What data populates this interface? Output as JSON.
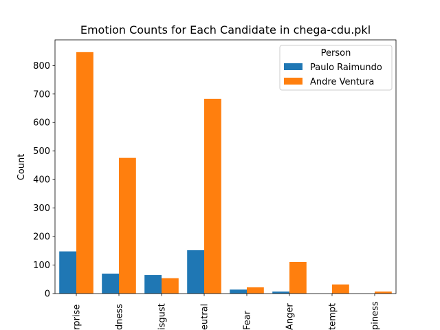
{
  "chart_data": {
    "type": "bar",
    "title": "Emotion Counts for Each Candidate in chega-cdu.pkl",
    "xlabel": "",
    "ylabel": "Count",
    "ylim": [
      0,
      890
    ],
    "yticks": [
      0,
      100,
      200,
      300,
      400,
      500,
      600,
      700,
      800
    ],
    "categories": [
      "Surprise",
      "Sadness",
      "Disgust",
      "Neutral",
      "Fear",
      "Anger",
      "Contempt",
      "Happiness"
    ],
    "category_labels_visible": [
      "rprise",
      "dness",
      "isgust",
      "eutral",
      "Fear",
      "Anger",
      "tempt",
      "piness"
    ],
    "series": [
      {
        "name": "Paulo Raimundo",
        "color": "#1f77b4",
        "values": [
          148,
          70,
          65,
          152,
          14,
          7,
          0,
          0
        ]
      },
      {
        "name": "Andre Ventura",
        "color": "#ff7f0e",
        "values": [
          847,
          476,
          54,
          683,
          22,
          111,
          32,
          7
        ]
      }
    ],
    "legend": {
      "title": "Person",
      "placement": "top-right"
    },
    "grid": false
  }
}
